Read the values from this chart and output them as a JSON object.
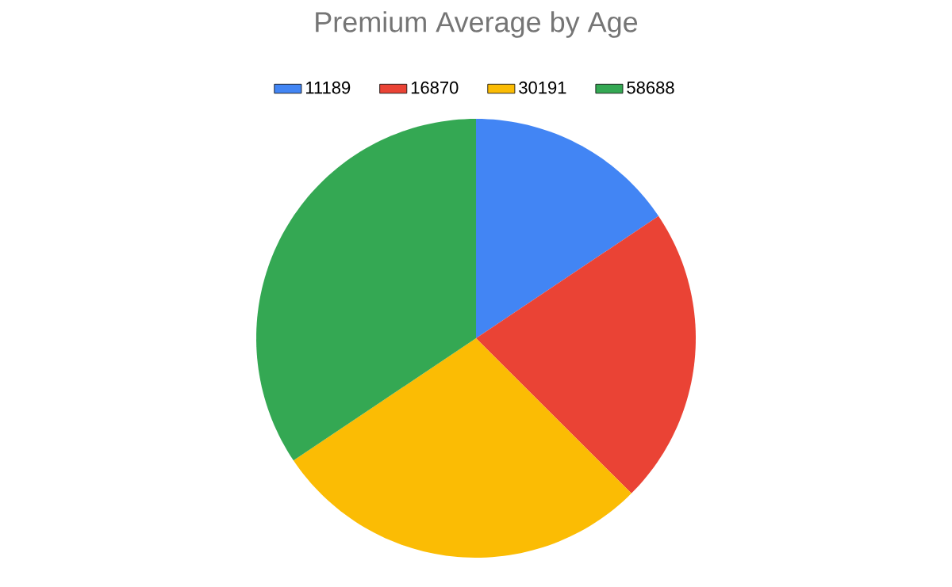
{
  "chart_data": {
    "type": "pie",
    "title": "Premium Average by Age",
    "categories": [
      "11189",
      "16870",
      "30191",
      "58688"
    ],
    "values": [
      15.6,
      21.9,
      28.1,
      34.4
    ],
    "colors": [
      "#4285f4",
      "#ea4335",
      "#fbbc04",
      "#34a853"
    ],
    "legend": "top"
  }
}
